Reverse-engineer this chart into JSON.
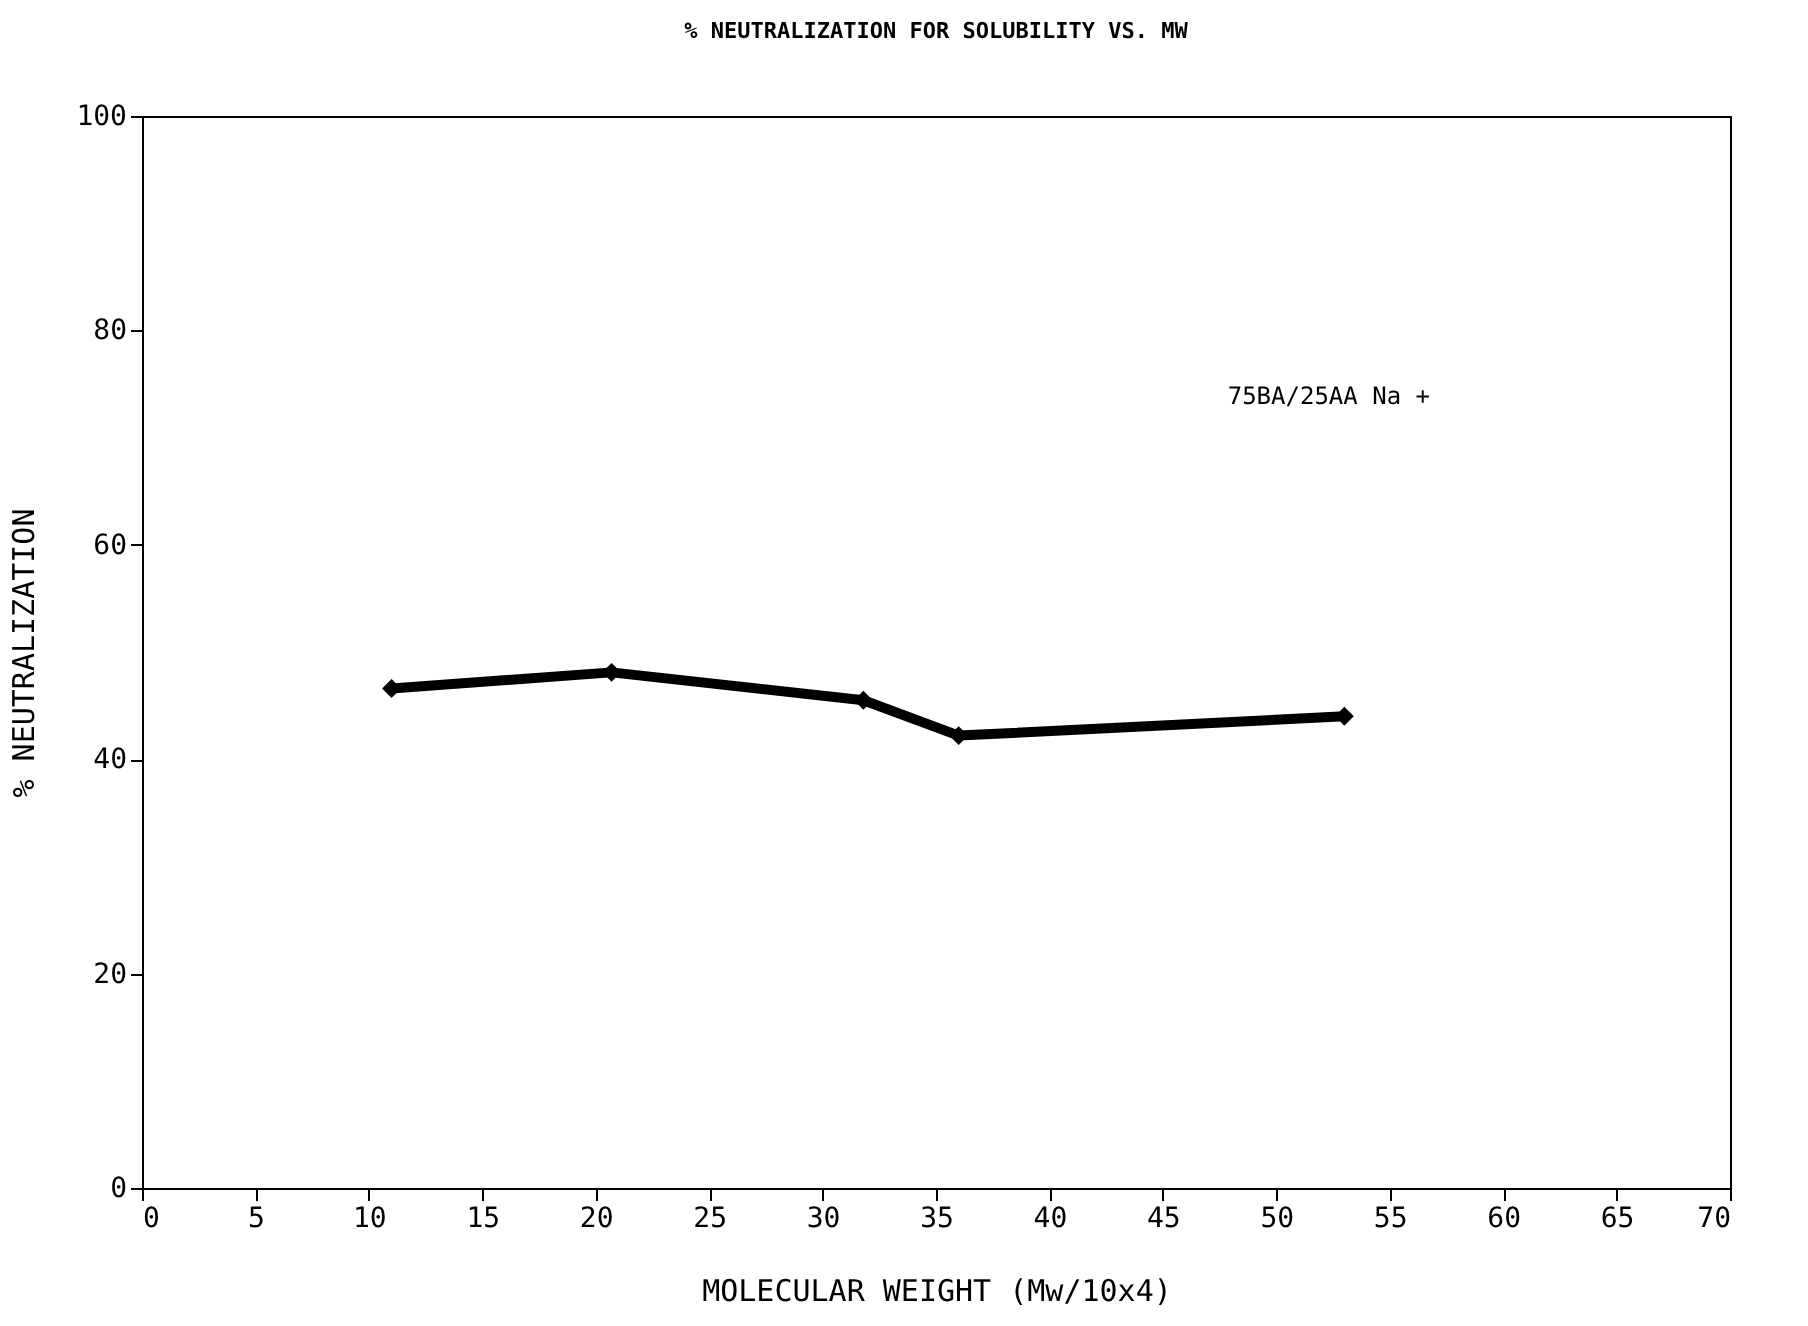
{
  "chart_data": {
    "type": "line",
    "title": "% NEUTRALIZATION FOR SOLUBILITY VS. MW",
    "xlabel": "MOLECULAR WEIGHT  (Mw/10x4)",
    "ylabel": "% NEUTRALIZATION",
    "x": [
      11,
      20.7,
      31.8,
      36,
      53
    ],
    "series": [
      {
        "name": "75BA/25AA Na +",
        "color": "#000000",
        "values": [
          46.6,
          48.1,
          45.5,
          42.2,
          44
        ]
      }
    ],
    "xlim": [
      0,
      70
    ],
    "xticks": [
      0,
      5,
      10,
      15,
      20,
      25,
      30,
      35,
      40,
      45,
      50,
      55,
      60,
      65,
      70
    ],
    "ylim": [
      0,
      100
    ],
    "yticks": [
      0,
      20,
      40,
      60,
      80,
      100
    ],
    "grid": false,
    "legend": "top right",
    "marker": "diamond",
    "line_style": "solid"
  }
}
